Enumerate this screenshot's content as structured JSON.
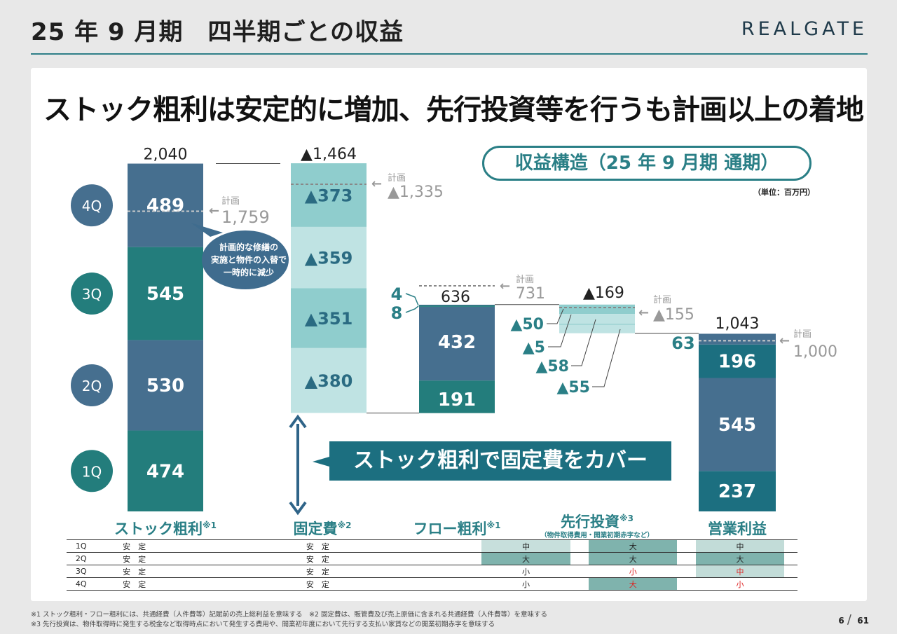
{
  "header": {
    "title": "25 年 9 月期　四半期ごとの収益",
    "logo": "REALGATE"
  },
  "headline": "ストック粗利は安定的に増加、先行投資等を行うも計画以上の着地",
  "badge": "収益構造（25 年 9 月期  通期）",
  "unit": "（単位：百万円）",
  "callout": "ストック粗利で固定費をカバー",
  "bubble": [
    "計画的な修繕の",
    "実施と物件の入替で",
    "一時的に減少"
  ],
  "colors": {
    "dark_blue": "#466f8f",
    "dark_teal": "#237d7c",
    "light1": "#bfe3e3",
    "light2": "#8fcdcd",
    "accent": "#2a7f86",
    "plan": "#999999",
    "teal_text": "#2a7f86"
  },
  "chart_data": {
    "type": "waterfall",
    "unit": "百万円",
    "quarters": [
      "1Q",
      "2Q",
      "3Q",
      "4Q"
    ],
    "columns": [
      {
        "name": "ストック粗利",
        "note": "※1",
        "total": "2,040",
        "values": [
          474,
          530,
          545,
          489
        ],
        "labels": [
          "474",
          "530",
          "545",
          "489"
        ],
        "plan_label": "計画",
        "plan_value": "1,759"
      },
      {
        "name": "固定費",
        "note": "※2",
        "total": "▲1,464",
        "values": [
          373,
          359,
          351,
          380
        ],
        "labels": [
          "▲373",
          "▲359",
          "▲351",
          "▲380"
        ],
        "plan_label": "計画",
        "plan_value": "▲1,335"
      },
      {
        "name": "フロー粗利",
        "note": "※1",
        "total": "636",
        "values": [
          191,
          432,
          8,
          4
        ],
        "labels": [
          "191",
          "432",
          "8",
          "4"
        ],
        "plan_label": "計画",
        "plan_value": "731"
      },
      {
        "name": "先行投資",
        "note": "※3",
        "sub": "（物件取得費用・開業初期赤字など）",
        "total": "▲169",
        "values": [
          55,
          58,
          5,
          50
        ],
        "labels": [
          "▲55",
          "▲58",
          "▲5",
          "▲50"
        ],
        "plan_label": "計画",
        "plan_value": "▲155"
      },
      {
        "name": "営業利益",
        "note": "",
        "total": "1,043",
        "values": [
          237,
          545,
          196,
          63
        ],
        "labels": [
          "237",
          "545",
          "196",
          "63"
        ],
        "plan_label": "計画",
        "plan_value": "1,000"
      }
    ]
  },
  "matrix": {
    "rows": [
      {
        "q": "1Q",
        "cells": [
          "安　定",
          "安　定",
          "中",
          "大",
          "中"
        ]
      },
      {
        "q": "2Q",
        "cells": [
          "安　定",
          "安　定",
          "大",
          "大",
          "大"
        ]
      },
      {
        "q": "3Q",
        "cells": [
          "安　定",
          "安　定",
          "小",
          "小",
          "中"
        ]
      },
      {
        "q": "4Q",
        "cells": [
          "安　定",
          "安　定",
          "小",
          "大",
          "小"
        ]
      }
    ],
    "shade": [
      [
        0,
        0,
        1,
        2,
        3
      ],
      [
        0,
        0,
        2,
        2,
        2
      ],
      [
        0,
        0,
        0,
        0,
        3
      ],
      [
        0,
        0,
        0,
        2,
        0
      ]
    ],
    "red": [
      [
        0,
        0,
        0,
        0,
        0
      ],
      [
        0,
        0,
        0,
        0,
        0
      ],
      [
        0,
        0,
        0,
        1,
        1
      ],
      [
        0,
        0,
        0,
        1,
        1
      ]
    ]
  },
  "footnotes": [
    "※1 ストック粗利・フロー粗利には、共通経費（人件費等）記賦前の売上総利益を意味する　※2 固定費は、販管費及び売上原価に含まれる共通経費（人件費等）を意味する",
    "※3 先行投資は、物件取得時に発生する税金など取得時点において発生する費用や、開業初年度において先行する支払い家賃などの開業初期赤字を意味する"
  ],
  "page": {
    "current": "6",
    "sep": "/",
    "total": "61"
  }
}
